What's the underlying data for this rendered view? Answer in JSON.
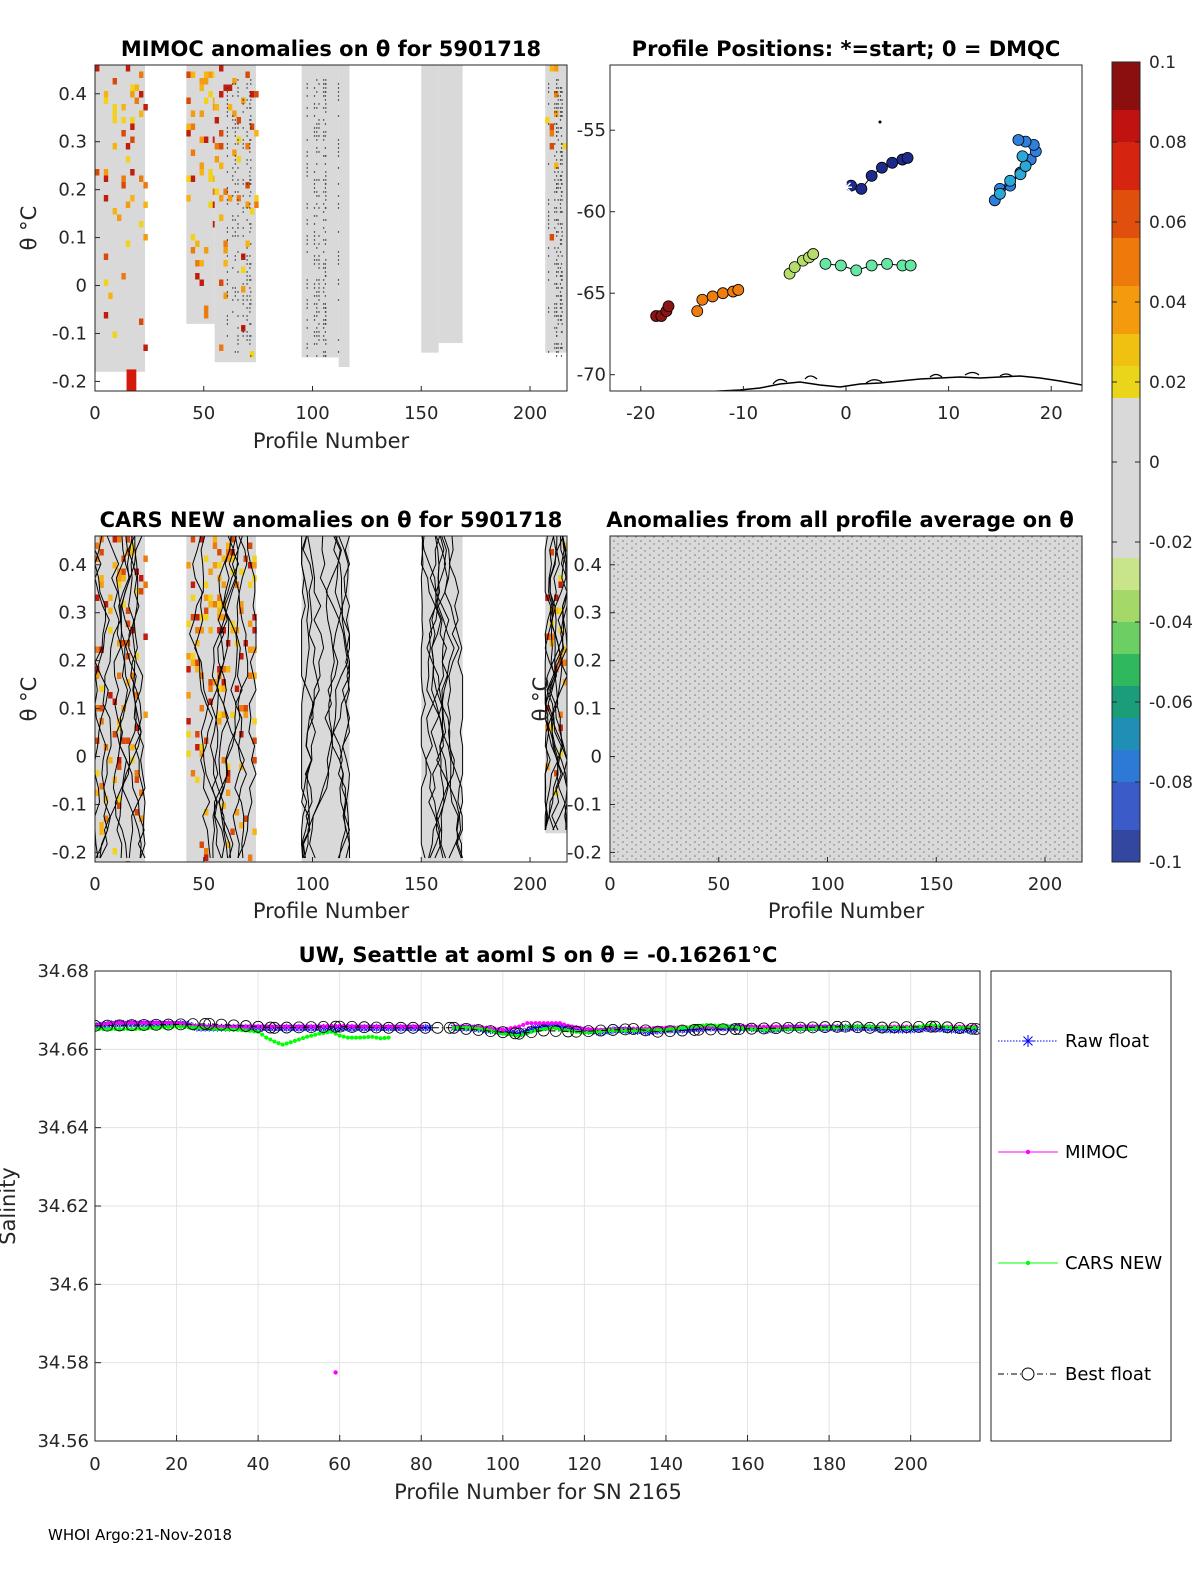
{
  "panels": {
    "mimoc": {
      "title": "MIMOC anomalies on θ  for 5901718",
      "xlabel": "Profile Number",
      "ylabel": "θ °C"
    },
    "positions": {
      "title": "Profile Positions: *=start; 0 = DMQC"
    },
    "cars": {
      "title": "CARS NEW anomalies on θ for 5901718",
      "xlabel": "Profile Number",
      "ylabel": "θ °C"
    },
    "profile_avg": {
      "title": "Anomalies from all profile average on θ",
      "xlabel": "Profile Number",
      "ylabel": "θ °C"
    },
    "salinity": {
      "title": "UW, Seattle at aoml S on θ = -0.16261°C",
      "xlabel": "Profile Number for SN 2165",
      "ylabel": "Salinity"
    }
  },
  "footer": "WHOI Argo:21-Nov-2018",
  "chart_data": [
    {
      "id": "mimoc",
      "type": "heatmap",
      "title": "MIMOC anomalies on θ  for 5901718",
      "xlabel": "Profile Number",
      "ylabel": "θ °C",
      "xlim": [
        0,
        217
      ],
      "ylim": [
        -0.22,
        0.46
      ],
      "xticks": [
        0,
        50,
        100,
        150,
        200
      ],
      "yticks": [
        -0.2,
        -0.1,
        0,
        0.1,
        0.2,
        0.3,
        0.4
      ],
      "data_coverage": [
        [
          0,
          23,
          -0.18
        ],
        [
          42,
          55,
          -0.08
        ],
        [
          55,
          74,
          -0.16
        ],
        [
          95,
          112,
          -0.15
        ],
        [
          112,
          117,
          -0.17
        ],
        [
          150,
          158,
          -0.14
        ],
        [
          158,
          169,
          -0.12
        ],
        [
          207,
          217,
          -0.14
        ]
      ]
    },
    {
      "id": "positions",
      "type": "scatter",
      "title": "Profile Positions: *=start; 0 = DMQC",
      "xlim": [
        -23,
        23
      ],
      "ylim": [
        -71,
        -51
      ],
      "xticks": [
        -20,
        -10,
        0,
        10,
        20
      ],
      "yticks": [
        -55,
        -60,
        -65,
        -70
      ],
      "start": [
        0,
        -58.5
      ],
      "tracks": [
        {
          "color": "#1c2a8c",
          "lon": [
            0.5,
            1.5,
            2.5,
            3.5,
            4.5,
            5.5,
            6
          ],
          "lat": [
            -58.4,
            -58.6,
            -57.8,
            -57.3,
            -57,
            -56.8,
            -56.7
          ]
        },
        {
          "color": "#2f7fdc",
          "lon": [
            14.5,
            15,
            16,
            17,
            18,
            18.5,
            18.3,
            17.5,
            16.8
          ],
          "lat": [
            -59.3,
            -58.6,
            -58.4,
            -57.6,
            -56.8,
            -56.3,
            -55.9,
            -55.7,
            -55.6
          ]
        },
        {
          "color": "#2aa9d9",
          "lon": [
            15,
            16,
            17,
            17.5,
            17.2
          ],
          "lat": [
            -58.9,
            -58.1,
            -57.7,
            -57.2,
            -56.6
          ]
        },
        {
          "color": "#b6dc6b",
          "lon": [
            -5.5,
            -5,
            -4.2,
            -3.6,
            -3.2
          ],
          "lat": [
            -63.8,
            -63.4,
            -63,
            -62.8,
            -62.6
          ]
        },
        {
          "color": "#66e6a3",
          "lon": [
            -2,
            -0.5,
            1,
            2.5,
            4,
            5.5,
            6.3
          ],
          "lat": [
            -63.2,
            -63.3,
            -63.6,
            -63.3,
            -63.2,
            -63.3,
            -63.3
          ]
        },
        {
          "color": "#ee7d0f",
          "lon": [
            -14.5,
            -14,
            -13,
            -12,
            -11,
            -10.5
          ],
          "lat": [
            -66.1,
            -65.4,
            -65.2,
            -65,
            -64.9,
            -64.8
          ]
        },
        {
          "color": "#8c1414",
          "lon": [
            -18.5,
            -18,
            -17.5,
            -17.3
          ],
          "lat": [
            -66.4,
            -66.4,
            -66.1,
            -65.8
          ]
        }
      ]
    },
    {
      "id": "cars",
      "type": "heatmap",
      "title": "CARS NEW anomalies on θ for 5901718",
      "xlabel": "Profile Number",
      "ylabel": "θ °C",
      "xlim": [
        0,
        217
      ],
      "ylim": [
        -0.22,
        0.46
      ],
      "xticks": [
        0,
        50,
        100,
        150,
        200
      ],
      "yticks": [
        -0.2,
        -0.1,
        0,
        0.1,
        0.2,
        0.3,
        0.4
      ],
      "data_coverage": [
        [
          0,
          23,
          -0.22
        ],
        [
          42,
          74,
          -0.22
        ],
        [
          95,
          117,
          -0.22
        ],
        [
          150,
          169,
          -0.22
        ],
        [
          207,
          217,
          -0.16
        ]
      ]
    },
    {
      "id": "profile_avg",
      "type": "heatmap",
      "title": "Anomalies from all profile average on θ",
      "xlabel": "Profile Number",
      "ylabel": "θ °C",
      "xlim": [
        0,
        217
      ],
      "ylim": [
        -0.22,
        0.46
      ],
      "xticks": [
        0,
        50,
        100,
        150,
        200
      ],
      "yticks": [
        -0.2,
        -0.1,
        0,
        0.1,
        0.2,
        0.3,
        0.4
      ],
      "data_coverage": [
        [
          0,
          217,
          -0.22
        ]
      ]
    },
    {
      "id": "colorbar",
      "type": "colorbar",
      "limits": [
        -0.1,
        0.1
      ],
      "ticks": [
        "0.1",
        "0.08",
        "0.06",
        "0.04",
        "0.02",
        "0",
        "-0.02",
        "-0.04",
        "-0.06",
        "-0.08",
        "-0.1"
      ]
    },
    {
      "id": "salinity",
      "type": "line",
      "title": "UW, Seattle at aoml S on θ = -0.16261°C",
      "xlabel": "Profile Number for SN 2165",
      "ylabel": "Salinity",
      "xlim": [
        0,
        217
      ],
      "ylim": [
        34.56,
        34.68
      ],
      "xticks": [
        0,
        20,
        40,
        60,
        80,
        100,
        120,
        140,
        160,
        180,
        200
      ],
      "yticks": [
        "34.56",
        "34.58",
        "34.6",
        "34.62",
        "34.64",
        "34.66",
        "34.68"
      ],
      "grid": true,
      "legend_position": "outside-right",
      "series": [
        {
          "name": "Raw float",
          "color": "#0000ff",
          "marker": "asterisk",
          "segments": [
            {
              "x": [
                0,
                5,
                10,
                15,
                20,
                22,
                25,
                30,
                35,
                40,
                45,
                50,
                55,
                60,
                65,
                70,
                75,
                80,
                82
              ],
              "y": [
                34.666,
                34.6665,
                34.6665,
                34.6665,
                34.6664,
                34.6665,
                34.6655,
                34.6655,
                34.6655,
                34.6655,
                34.6655,
                34.6655,
                34.6655,
                34.6655,
                34.6655,
                34.6655,
                34.6655,
                34.6655,
                34.6655
              ]
            },
            {
              "x": [
                88,
                92,
                96,
                100,
                104,
                108,
                112,
                116,
                120,
                124,
                128,
                132,
                136,
                140,
                145,
                150,
                155,
                160,
                165,
                170,
                175,
                180,
                185,
                190,
                195,
                200,
                205,
                210,
                216
              ],
              "y": [
                34.6655,
                34.6655,
                34.665,
                34.6645,
                34.664,
                34.6655,
                34.666,
                34.6655,
                34.6648,
                34.6645,
                34.665,
                34.6648,
                34.6645,
                34.665,
                34.665,
                34.6655,
                34.6655,
                34.6655,
                34.665,
                34.6655,
                34.6655,
                34.6655,
                34.6655,
                34.6655,
                34.665,
                34.665,
                34.6655,
                34.665,
                34.665
              ]
            }
          ]
        },
        {
          "name": "MIMOC",
          "color": "#ff00ff",
          "marker": "dot",
          "segments": [
            {
              "x": [
                0,
                5,
                10,
                15,
                20,
                22,
                25,
                30,
                35,
                40,
                45,
                50,
                55,
                58,
                60,
                65,
                70,
                75,
                80
              ],
              "y": [
                34.6662,
                34.6668,
                34.6668,
                34.6668,
                34.6667,
                34.6665,
                34.6658,
                34.6658,
                34.6658,
                34.6658,
                34.6658,
                34.6658,
                34.6658,
                34.666,
                34.666,
                34.6658,
                34.6658,
                34.6658,
                34.6658
              ]
            },
            {
              "x": [
                88,
                92,
                96,
                100,
                104,
                106,
                110,
                114,
                116,
                120,
                124,
                130,
                140,
                150,
                160,
                170,
                180,
                190,
                200,
                210,
                216
              ],
              "y": [
                34.6658,
                34.6658,
                34.6655,
                34.665,
                34.6658,
                34.6667,
                34.6667,
                34.6667,
                34.666,
                34.6652,
                34.665,
                34.6652,
                34.6655,
                34.6658,
                34.6658,
                34.6658,
                34.6658,
                34.6658,
                34.6658,
                34.6658,
                34.6658
              ]
            }
          ],
          "outliers": [
            {
              "x": 59,
              "y": 34.5775
            }
          ]
        },
        {
          "name": "CARS NEW",
          "color": "#00ff00",
          "marker": "dot",
          "segments": [
            {
              "x": [
                0,
                5,
                10,
                15,
                20,
                25,
                30,
                35,
                40,
                42,
                44,
                46,
                48,
                50,
                52,
                55,
                58,
                60,
                62,
                65,
                68,
                70,
                72
              ],
              "y": [
                34.6652,
                34.6652,
                34.6652,
                34.6655,
                34.6658,
                34.6655,
                34.6652,
                34.665,
                34.6645,
                34.663,
                34.662,
                34.6612,
                34.6618,
                34.6625,
                34.6632,
                34.664,
                34.6645,
                34.6635,
                34.663,
                34.663,
                34.6632,
                34.6628,
                34.663
              ]
            },
            {
              "x": [
                88,
                92,
                96,
                100,
                104,
                108,
                112,
                116,
                120,
                126,
                132,
                140,
                150,
                156,
                160,
                165,
                170,
                175,
                180,
                185,
                190,
                195,
                200,
                205,
                210,
                216
              ],
              "y": [
                34.6655,
                34.6655,
                34.665,
                34.664,
                34.6635,
                34.6648,
                34.6655,
                34.6648,
                34.6642,
                34.6648,
                34.6648,
                34.665,
                34.6662,
                34.6658,
                34.6652,
                34.665,
                34.6652,
                34.6652,
                34.6655,
                34.6658,
                34.6658,
                34.6655,
                34.6655,
                34.6662,
                34.6655,
                34.6655
              ]
            }
          ]
        },
        {
          "name": "Best float",
          "color": "#000000",
          "marker": "circle",
          "dash": "dashdot",
          "segments": [
            {
              "x": [
                0,
                28,
                44,
                60,
                72,
                88,
                104,
                110,
                118,
                132,
                138,
                148,
                158,
                184,
                190,
                206,
                216
              ],
              "y": [
                34.666,
                34.6665,
                34.6655,
                34.6658,
                34.6655,
                34.6655,
                34.664,
                34.6648,
                34.6645,
                34.6652,
                34.6645,
                34.665,
                34.6652,
                34.6658,
                34.6655,
                34.6658,
                34.6652
              ]
            }
          ]
        }
      ]
    }
  ]
}
